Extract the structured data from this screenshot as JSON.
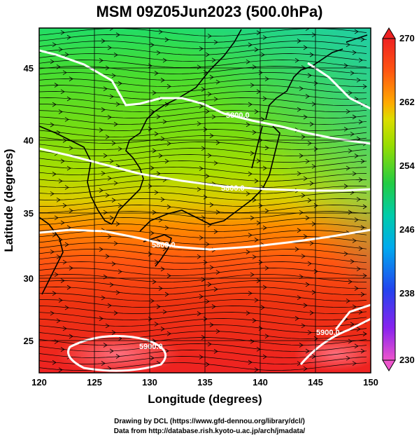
{
  "title": "MSM 09Z05Jun2023 (500.0hPa)",
  "x_axis_label": "Longitude (degrees)",
  "y_axis_label": "Latitude  (degrees)",
  "x_ticks": [
    "120",
    "125",
    "130",
    "135",
    "140",
    "145",
    "150"
  ],
  "y_ticks": [
    "25",
    "30",
    "35",
    "40",
    "45"
  ],
  "colorbar": {
    "labels": [
      "270",
      "262",
      "254",
      "246",
      "238",
      "230"
    ],
    "min": 230,
    "max": 270,
    "colors": [
      "#ff66cc",
      "#cc33ff",
      "#3333ff",
      "#0099ff",
      "#00ccdd",
      "#22cc66",
      "#44cc22",
      "#99dd00",
      "#dddd00",
      "#ffaa00",
      "#ff5511",
      "#ee2222"
    ]
  },
  "contour_labels": [
    "5800.0",
    "5800.0",
    "5800.0",
    "5900.0",
    "5900.0"
  ],
  "credits": {
    "line1": "Drawing by DCL (https://www.gfd-dennou.org/library/dcl/)",
    "line2": "Data from http://database.rish.kyoto-u.ac.jp/arch/jmadata/"
  }
}
